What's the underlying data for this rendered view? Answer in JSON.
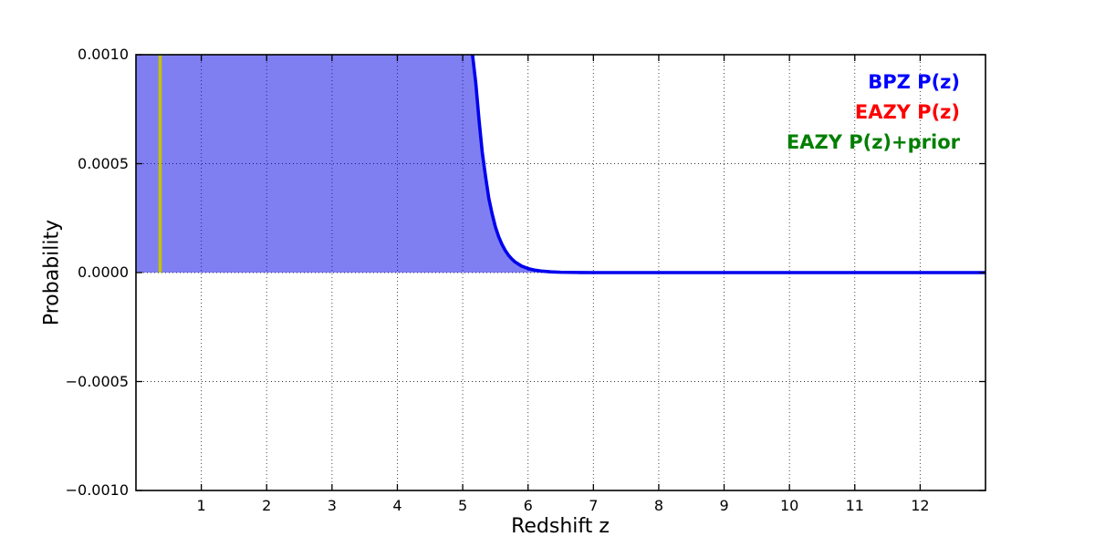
{
  "axes": {
    "xlabel": "Redshift z",
    "ylabel": "Probability"
  },
  "legend": {
    "position": "upper right",
    "entries": [
      {
        "label": "BPZ P(z)",
        "color": "#0000ff"
      },
      {
        "label": "EAZY P(z)",
        "color": "#ff0000"
      },
      {
        "label": "EAZY P(z)+prior",
        "color": "#007f00"
      }
    ]
  },
  "chart_data": {
    "type": "line",
    "title": "",
    "xlabel": "Redshift z",
    "ylabel": "Probability",
    "xlim": [
      0,
      13
    ],
    "ylim": [
      -0.001,
      0.001
    ],
    "xticks": [
      1,
      2,
      3,
      4,
      5,
      6,
      7,
      8,
      9,
      10,
      11,
      12
    ],
    "yticks": [
      -0.001,
      -0.0005,
      0,
      0.0005,
      0.001
    ],
    "ytick_labels": [
      "−0.0010",
      "−0.0005",
      "0.0000",
      "0.0005",
      "0.0010"
    ],
    "grid": "dotted",
    "legend_position": "upper right",
    "series": [
      {
        "name": "BPZ P(z)",
        "color": "#0000ee",
        "fill_color": "rgba(0,0,230,0.5)",
        "line_width": 3.6,
        "note": "curve is clipped at ylim top (0.001); fill spans full height from z=0 to z~5.17 then decays to 0 by z~7",
        "points": [
          [
            0,
            0.001
          ],
          [
            5.15,
            0.001
          ],
          [
            5.2,
            0.00087
          ],
          [
            5.25,
            0.0007
          ],
          [
            5.3,
            0.00055
          ],
          [
            5.35,
            0.00044
          ],
          [
            5.4,
            0.00034
          ],
          [
            5.45,
            0.00027
          ],
          [
            5.5,
            0.00021
          ],
          [
            5.55,
            0.000165
          ],
          [
            5.6,
            0.00013
          ],
          [
            5.65,
            0.000102
          ],
          [
            5.7,
            8e-05
          ],
          [
            5.75,
            6.3e-05
          ],
          [
            5.8,
            4.9e-05
          ],
          [
            5.9,
            3e-05
          ],
          [
            6.0,
            1.85e-05
          ],
          [
            6.1,
            1.14e-05
          ],
          [
            6.2,
            7e-06
          ],
          [
            6.35,
            3.4e-06
          ],
          [
            6.5,
            1.6e-06
          ],
          [
            6.75,
            5e-07
          ],
          [
            7.0,
            0
          ],
          [
            7.5,
            0
          ],
          [
            8,
            0
          ],
          [
            9,
            0
          ],
          [
            10,
            0
          ],
          [
            11,
            0
          ],
          [
            12,
            0
          ],
          [
            13,
            0
          ]
        ]
      },
      {
        "name": "EAZY P(z)",
        "color": "#ff0000",
        "points": [],
        "note": "not visible in plot area"
      },
      {
        "name": "EAZY P(z)+prior",
        "color": "#007f00",
        "points": [],
        "note": "not visible in plot area"
      }
    ],
    "vline": {
      "x": 0.37,
      "y_from": 0,
      "y_to": 0.001,
      "color": "#c3c300",
      "line_width": 3.6
    }
  }
}
